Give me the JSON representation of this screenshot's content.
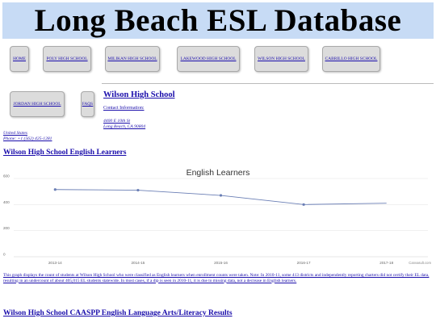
{
  "header": {
    "title": "Long Beach ESL Database"
  },
  "nav": {
    "buttons": [
      "HOME",
      "POLY HIGH SCHOOL",
      "MILIKAN HIGH SCHOOL",
      "LAKEWOOD HIGH SCHOOL",
      "WILSON HIGH SCHOOL",
      "CABRILLO HIGH SCHOOL",
      "JORDAN HIGH SCHOOL",
      "FAQS"
    ]
  },
  "school": {
    "name": "Wilson High School",
    "contact_label": "Contact Information:",
    "address_line1": "4400 E 10th St",
    "address_line2": "Long Beach, CA 90804",
    "country": "United States",
    "phone": "Phone: +1 (562) 425-1281"
  },
  "sections": {
    "english_learners_heading": "Wilson High School English Learners",
    "caaspp_heading": "Wilson High School CAASPP English Language Arts/Literacy Results"
  },
  "chart_data": {
    "type": "line",
    "title": "English Learners",
    "categories": [
      "2013-14",
      "2014-15",
      "2015-16",
      "2016-17",
      "2017-18"
    ],
    "series": [
      {
        "values": [
          515,
          510,
          470,
          400,
          410
        ]
      }
    ],
    "ylim": [
      0,
      600
    ],
    "yticks": [
      "0",
      "200",
      "400",
      "600"
    ],
    "grid": true,
    "credit": "Canvasult.com",
    "colors": {
      "line": "#6b7fb5",
      "grid": "#e6e6e6",
      "axis": "#cfcfcf"
    }
  },
  "note": "This graph displays the count of students at Wilson High School who were classified as English learners when enrollment counts were taken. Note: In 2010-11, some 413 districts and independently reporting charters did not certify their EL data, resulting in an undercount of about 405,015 EL students statewide. In most cases, if a dip is seen in 2010-11, it is due to missing data, not a decrease in English learners."
}
